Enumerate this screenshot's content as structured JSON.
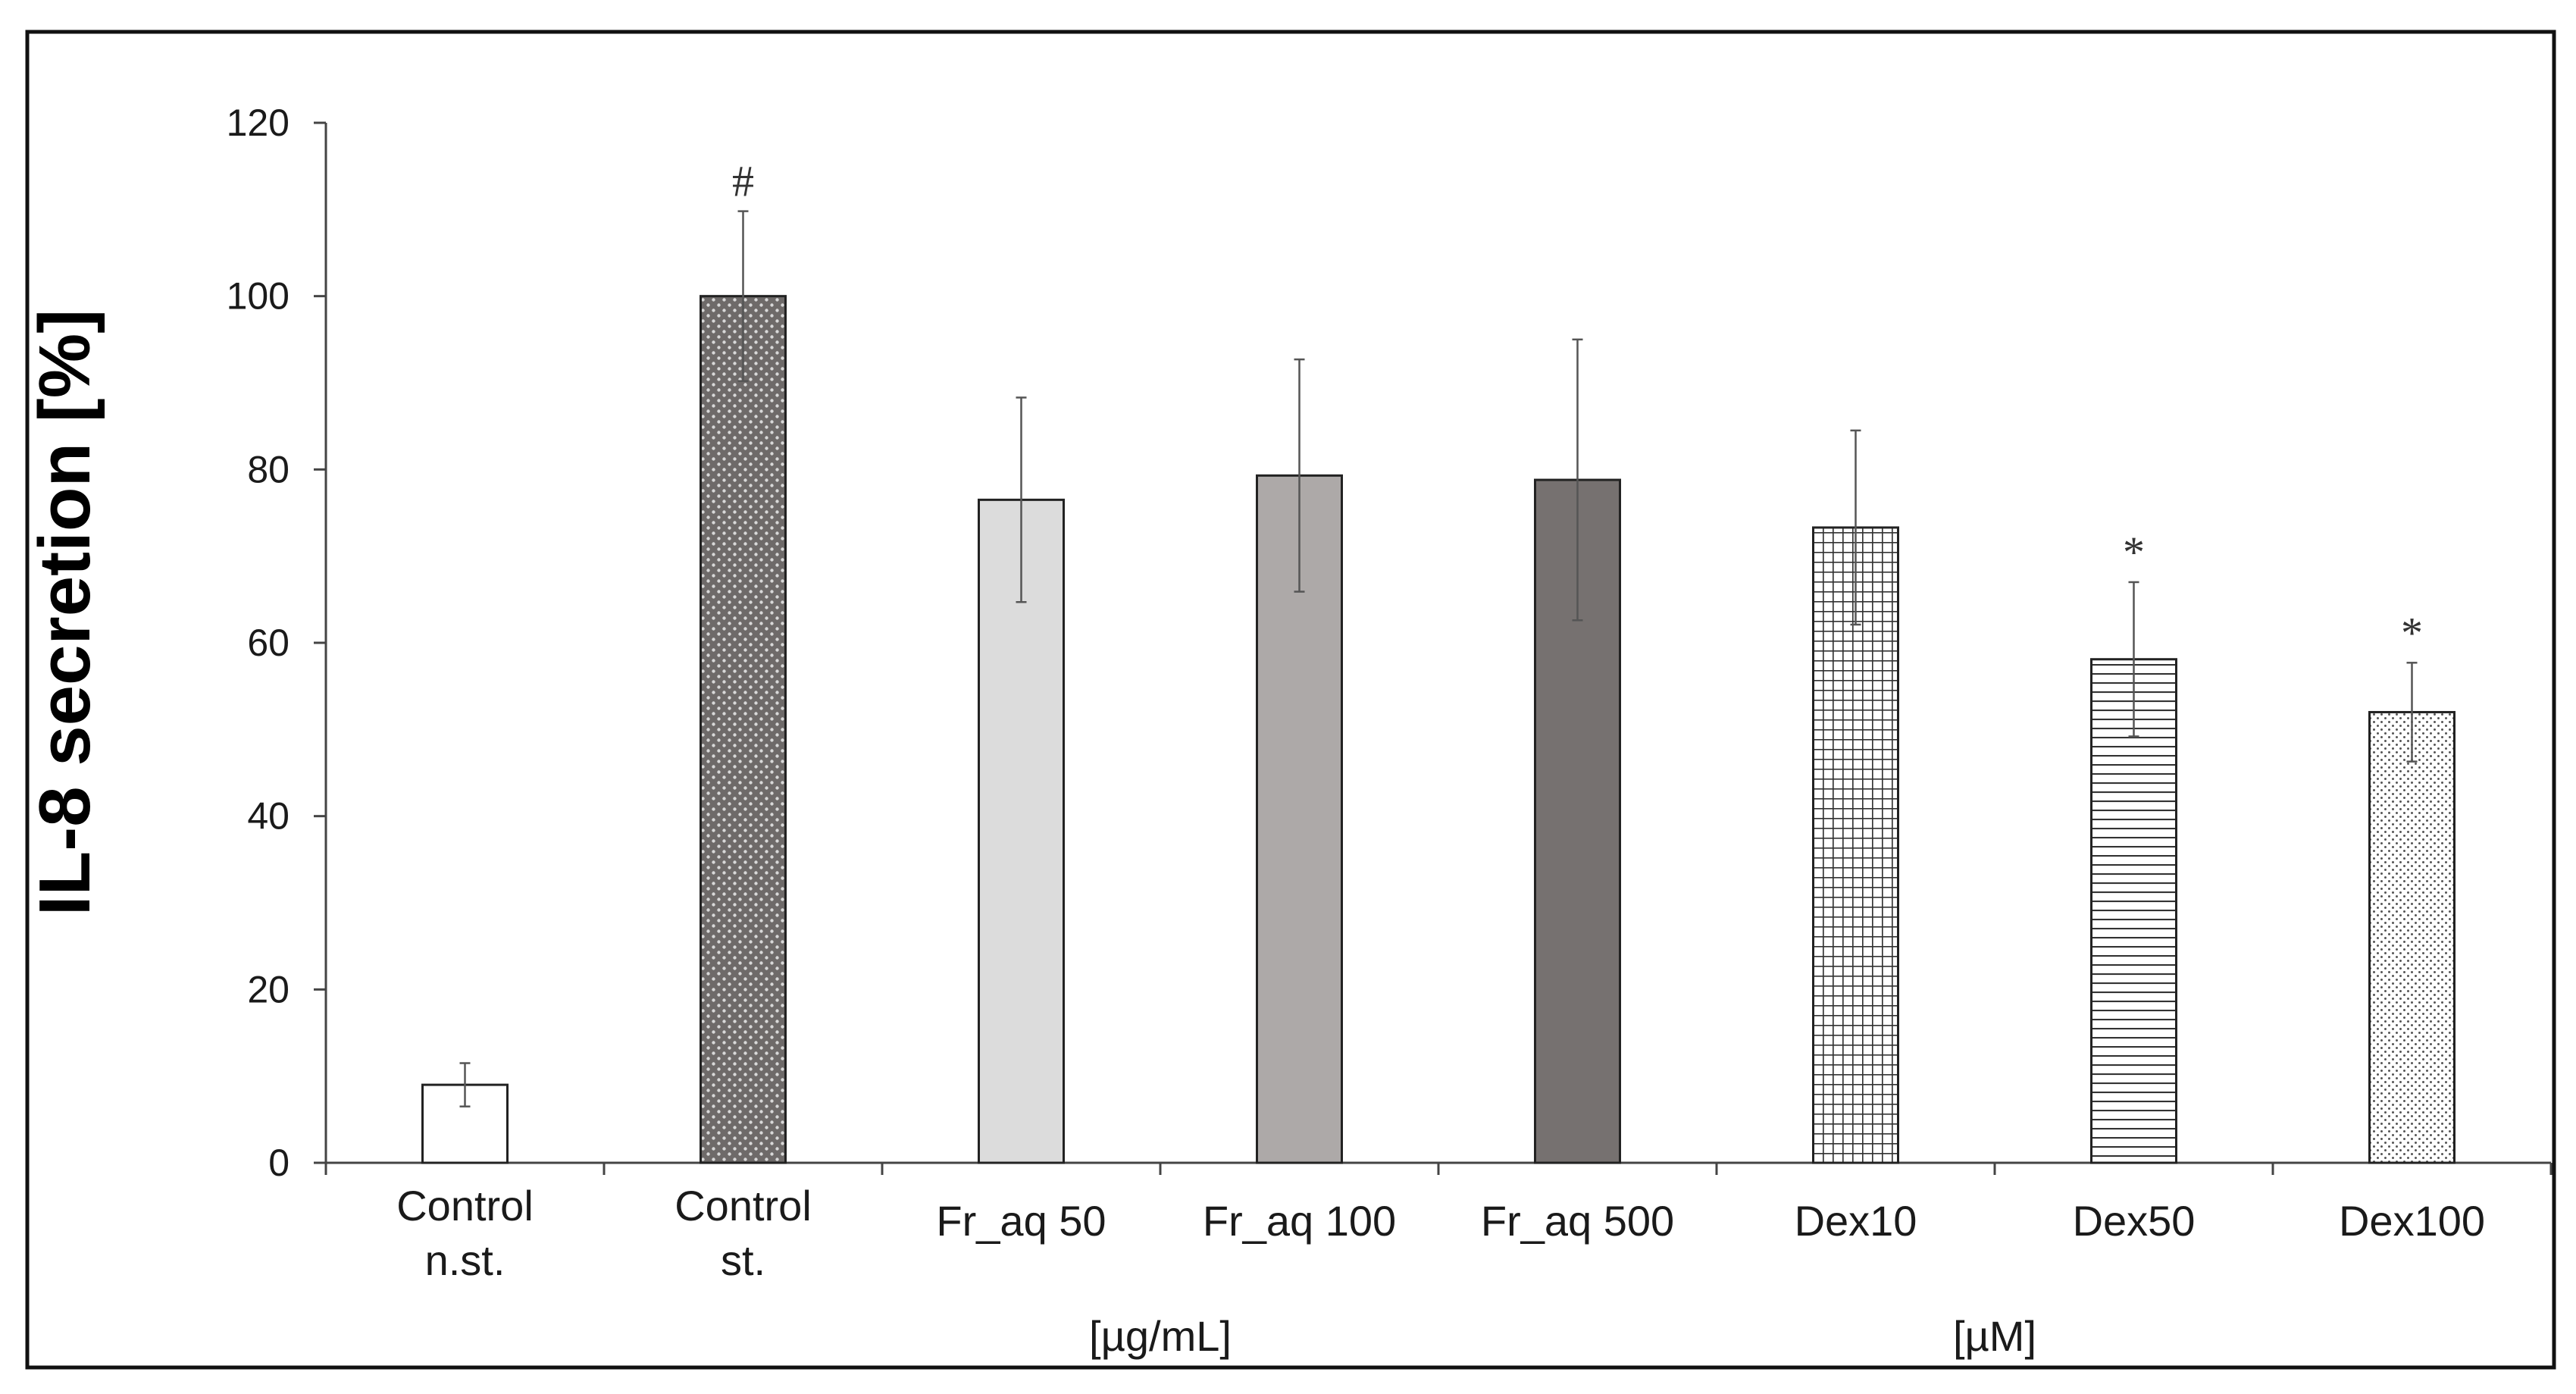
{
  "chart_data": {
    "type": "bar",
    "title": "",
    "xlabel": "",
    "ylabel": "IL-8 secretion [%]",
    "ylim": [
      0,
      120
    ],
    "yticks": [
      "0",
      "20",
      "40",
      "60",
      "80",
      "100",
      "120"
    ],
    "grid": false,
    "categories": [
      [
        "Control",
        "n.st."
      ],
      [
        "Control",
        "st."
      ],
      [
        "Fr_aq 50"
      ],
      [
        "Fr_aq 100"
      ],
      [
        "Fr_aq 500"
      ],
      [
        "Dex10"
      ],
      [
        "Dex50"
      ],
      [
        "Dex100"
      ]
    ],
    "values": [
      9,
      100,
      76.5,
      79.3,
      78.8,
      73.3,
      58.1,
      52
    ],
    "errors": [
      2.5,
      9.8,
      11.8,
      13.4,
      16.2,
      11.2,
      8.9,
      5.7
    ],
    "annotations": [
      "",
      "#",
      "",
      "",
      "",
      "",
      "*",
      "*"
    ],
    "fills": [
      "white",
      "dots-dark",
      "#dcdcdc",
      "#ada9a8",
      "#767170",
      "grid",
      "hlines",
      "dots-light"
    ],
    "unit_labels": [
      {
        "text": "[µg/mL]",
        "after_category": 3
      },
      {
        "text": "[µM]",
        "after_category": 6
      }
    ]
  }
}
